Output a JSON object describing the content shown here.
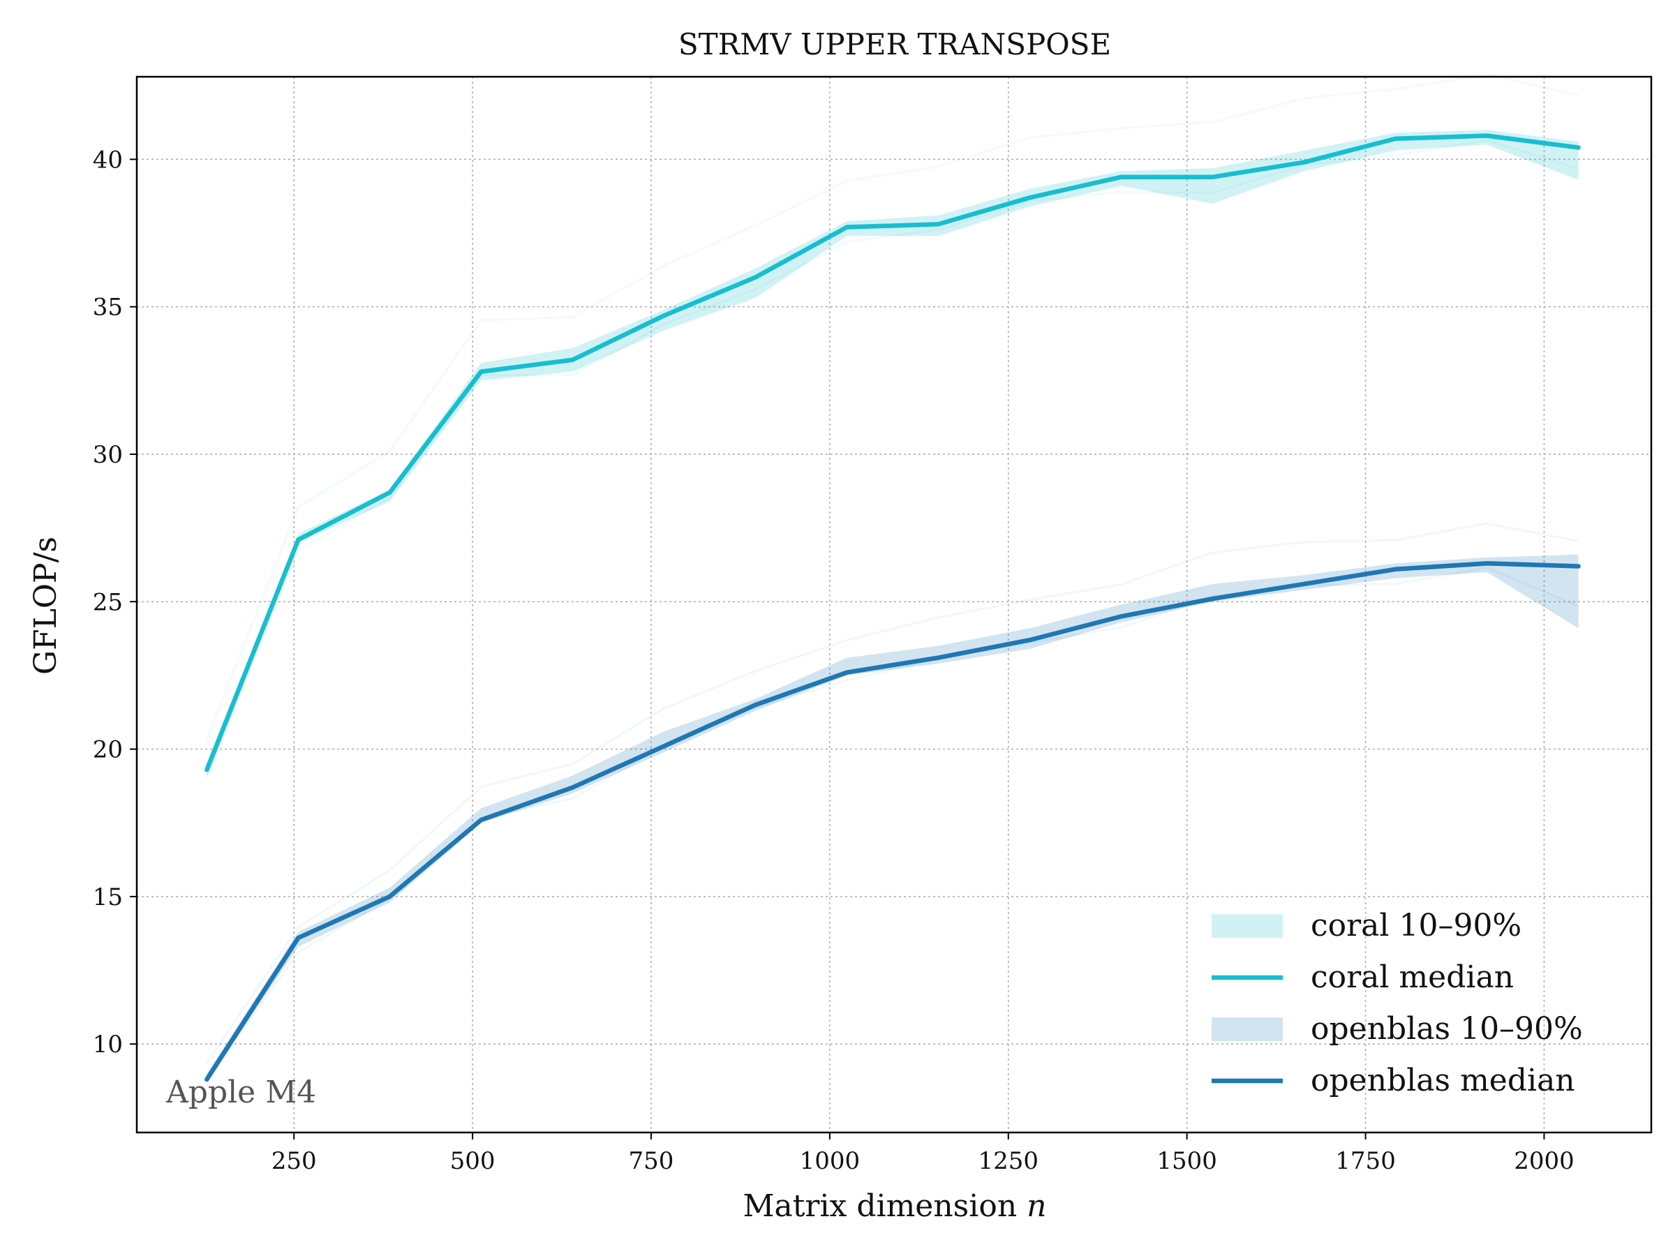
{
  "chart_data": {
    "type": "line",
    "title": "STRMV UPPER TRANSPOSE",
    "xlabel": "Matrix dimension",
    "xlabel_var": "n",
    "ylabel": "GFLOP/s",
    "xlim": [
      30,
      2150
    ],
    "ylim": [
      7,
      42.8
    ],
    "xticks": [
      250,
      500,
      750,
      1000,
      1250,
      1500,
      1750,
      2000
    ],
    "yticks": [
      10,
      15,
      20,
      25,
      30,
      35,
      40
    ],
    "grid": true,
    "legend_position": "bottom-right",
    "annotation": "Apple M4",
    "x": [
      128,
      256,
      384,
      512,
      640,
      768,
      896,
      1024,
      1152,
      1280,
      1408,
      1536,
      1664,
      1792,
      1920,
      2048
    ],
    "series": [
      {
        "name": "coral median",
        "band_name": "coral 10–90%",
        "color": "#17becf",
        "median": [
          19.3,
          27.1,
          28.7,
          32.8,
          33.2,
          34.7,
          36.0,
          37.7,
          37.8,
          38.7,
          39.4,
          39.4,
          39.9,
          40.7,
          40.8,
          40.4
        ],
        "p10": [
          19.0,
          27.0,
          28.4,
          32.5,
          32.8,
          34.2,
          35.3,
          37.4,
          37.4,
          38.4,
          39.1,
          38.5,
          39.6,
          40.3,
          40.5,
          39.3
        ],
        "p90": [
          19.5,
          27.3,
          28.8,
          33.1,
          33.6,
          34.9,
          36.3,
          37.9,
          38.1,
          39.0,
          39.6,
          39.7,
          40.3,
          40.9,
          41.0,
          40.6
        ]
      },
      {
        "name": "openblas median",
        "band_name": "openblas 10–90%",
        "color": "#1f77b4",
        "median": [
          8.8,
          13.6,
          15.0,
          17.6,
          18.7,
          20.1,
          21.5,
          22.6,
          23.1,
          23.7,
          24.5,
          25.1,
          25.6,
          26.1,
          26.3,
          26.2
        ],
        "p10": [
          8.7,
          13.3,
          14.8,
          17.5,
          18.5,
          19.9,
          21.3,
          22.5,
          22.9,
          23.4,
          24.3,
          25.0,
          25.4,
          25.8,
          26.0,
          24.1
        ],
        "p90": [
          9.0,
          13.8,
          15.3,
          18.0,
          19.1,
          20.6,
          21.7,
          23.1,
          23.5,
          24.1,
          24.9,
          25.6,
          25.9,
          26.3,
          26.5,
          26.6
        ]
      }
    ]
  }
}
